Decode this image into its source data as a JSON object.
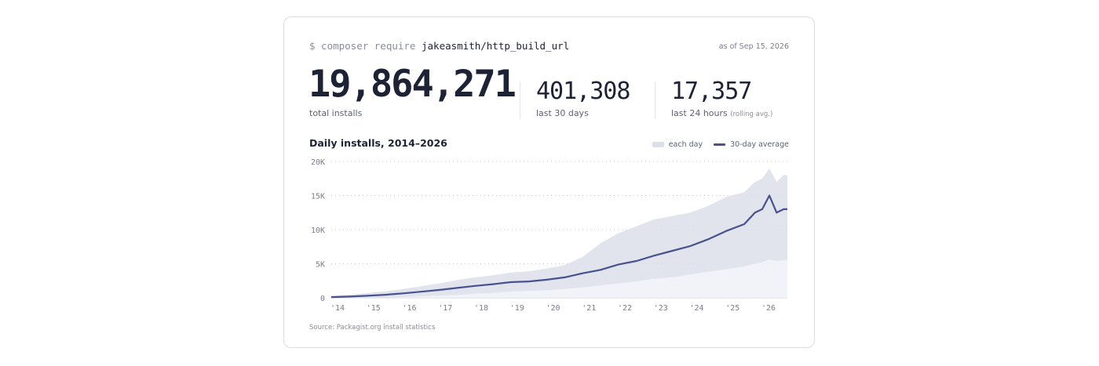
{
  "header": {
    "prompt": "$ composer require",
    "package": "jakeasmith/http_build_url",
    "as_of": "as of Sep 15, 2026"
  },
  "stats": {
    "total": {
      "value": "19,864,271",
      "label": "total installs"
    },
    "last30": {
      "value": "401,308",
      "label": "last 30 days"
    },
    "last24": {
      "value": "17,357",
      "label": "last 24 hours",
      "note": "(rolling avg.)"
    }
  },
  "chart": {
    "title": "Daily installs, 2014–2026",
    "legend": {
      "daily": "each day",
      "avg": "30-day average"
    },
    "source": "Source: Packagist.org install statistics"
  },
  "colors": {
    "avg_line": "#48528e",
    "daily_fill": "#dcdeea",
    "grid": "#c9cbd3"
  },
  "chart_data": {
    "type": "area",
    "ylim": [
      0,
      20000
    ],
    "xlim": [
      2014.0,
      2026.7
    ],
    "y_ticks": [
      {
        "value": 0,
        "label": "0"
      },
      {
        "value": 5000,
        "label": "5K"
      },
      {
        "value": 10000,
        "label": "10K"
      },
      {
        "value": 15000,
        "label": "15K"
      },
      {
        "value": 20000,
        "label": "20K"
      }
    ],
    "x_ticks": [
      {
        "value": 2014,
        "label": "'14"
      },
      {
        "value": 2015,
        "label": "'15"
      },
      {
        "value": 2016,
        "label": "'16"
      },
      {
        "value": 2017,
        "label": "'17"
      },
      {
        "value": 2018,
        "label": "'18"
      },
      {
        "value": 2019,
        "label": "'19"
      },
      {
        "value": 2020,
        "label": "'20"
      },
      {
        "value": 2021,
        "label": "'21"
      },
      {
        "value": 2022,
        "label": "'22"
      },
      {
        "value": 2023,
        "label": "'23"
      },
      {
        "value": 2024,
        "label": "'24"
      },
      {
        "value": 2025,
        "label": "'25"
      },
      {
        "value": 2026,
        "label": "'26"
      }
    ],
    "series": [
      {
        "name": "30-day average",
        "x": [
          2014.0,
          2014.5,
          2015.0,
          2015.5,
          2016.0,
          2016.5,
          2017.0,
          2017.5,
          2018.0,
          2018.5,
          2019.0,
          2019.5,
          2020.0,
          2020.5,
          2021.0,
          2021.5,
          2022.0,
          2022.5,
          2023.0,
          2023.5,
          2024.0,
          2024.5,
          2025.0,
          2025.5,
          2025.8,
          2026.0,
          2026.2,
          2026.4,
          2026.6,
          2026.7
        ],
        "values": [
          100,
          180,
          300,
          450,
          650,
          900,
          1150,
          1450,
          1750,
          2000,
          2300,
          2400,
          2650,
          3000,
          3600,
          4100,
          4900,
          5400,
          6200,
          6900,
          7600,
          8600,
          9800,
          10800,
          12500,
          13000,
          15000,
          12500,
          13000,
          13000
        ]
      },
      {
        "name": "each day",
        "x": [
          2014.0,
          2014.5,
          2015.0,
          2015.5,
          2016.0,
          2016.5,
          2017.0,
          2017.5,
          2018.0,
          2018.5,
          2019.0,
          2019.5,
          2020.0,
          2020.5,
          2021.0,
          2021.5,
          2022.0,
          2022.5,
          2023.0,
          2023.5,
          2024.0,
          2024.5,
          2025.0,
          2025.5,
          2025.8,
          2026.0,
          2026.2,
          2026.4,
          2026.6,
          2026.7
        ],
        "high": [
          300,
          450,
          700,
          950,
          1300,
          1700,
          2100,
          2600,
          3000,
          3300,
          3700,
          3900,
          4300,
          4800,
          6000,
          8000,
          9500,
          10500,
          11500,
          12000,
          12500,
          13500,
          14800,
          15500,
          17000,
          17500,
          19000,
          17000,
          18000,
          18000
        ],
        "low": [
          0,
          0,
          0,
          0,
          100,
          200,
          300,
          400,
          600,
          700,
          900,
          1000,
          1100,
          1300,
          1500,
          1800,
          2100,
          2400,
          2800,
          3000,
          3400,
          3800,
          4200,
          4600,
          5000,
          5200,
          5600,
          5400,
          5500,
          5500
        ]
      }
    ]
  }
}
